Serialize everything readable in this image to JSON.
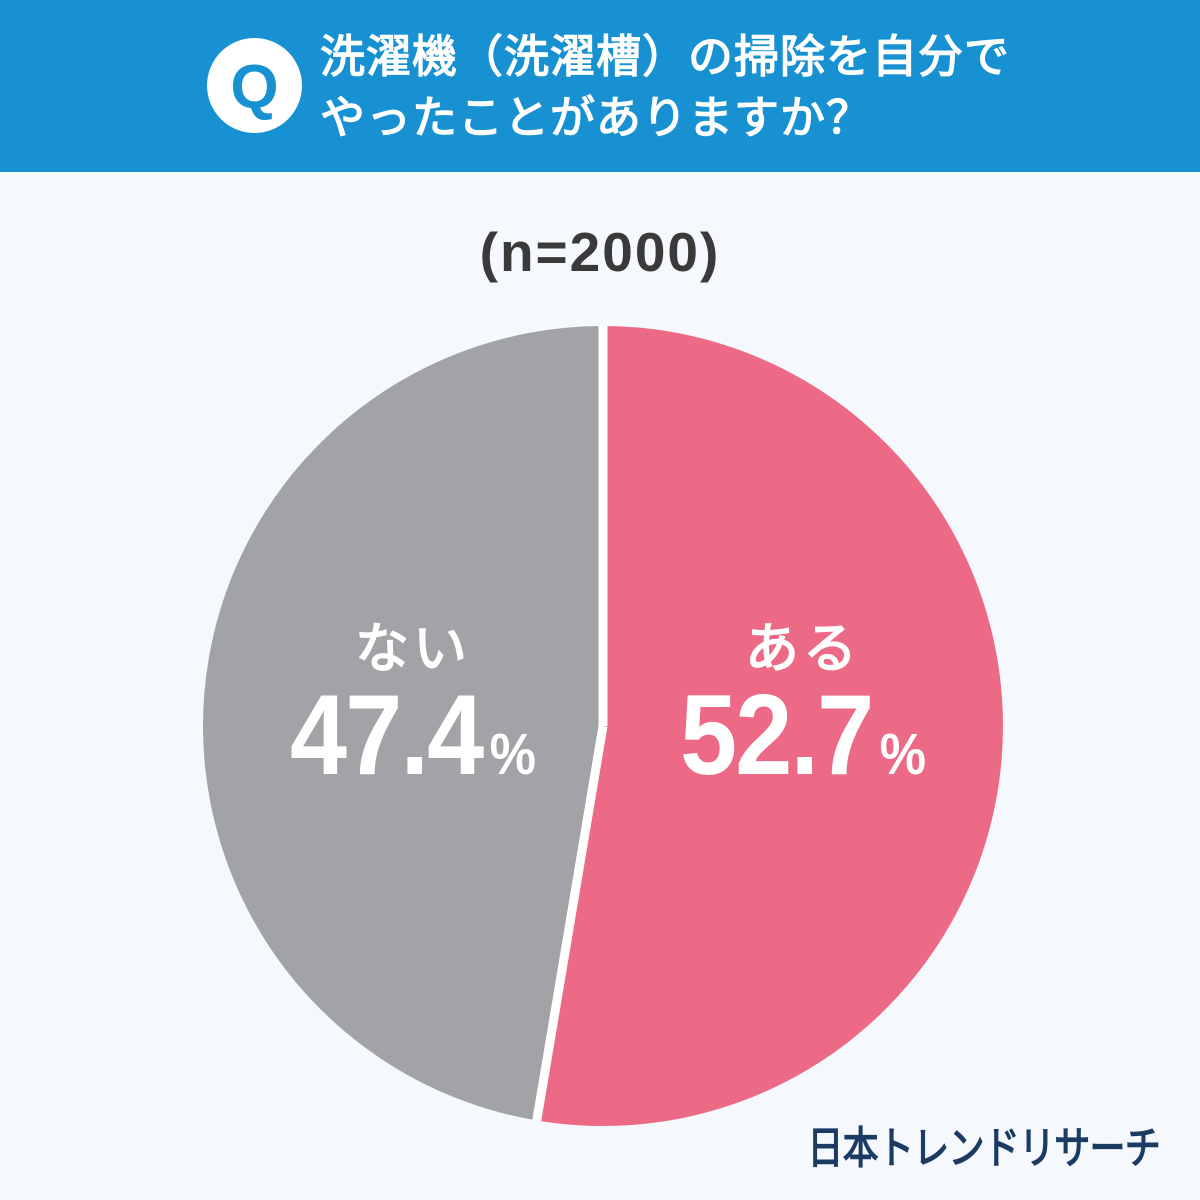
{
  "header": {
    "badge_letter": "Q",
    "question_line1": "洗濯機（洗濯槽）の掃除を自分で",
    "question_line2": "やったことがありますか？"
  },
  "sample_size_label": "(n=2000)",
  "chart_data": {
    "type": "pie",
    "title": "洗濯機（洗濯槽）の掃除を自分でやったことがありますか？",
    "sample_label": "(n=2000)",
    "sample_n": 2000,
    "start_angle_deg": 0,
    "direction": "clockwise",
    "legend_position": "inside-slices",
    "slices": [
      {
        "label": "ある",
        "value": 52.7,
        "unit": "%",
        "color": "#ec6a85"
      },
      {
        "label": "ない",
        "value": 47.4,
        "unit": "%",
        "color": "#a1a3a7"
      }
    ],
    "divider_color": "#ffffff"
  },
  "footer": {
    "brand": "日本トレンドリサーチ"
  },
  "colors": {
    "header_blue": "#1791d2",
    "background": "#f5f8fc",
    "pink": "#ec6a85",
    "gray": "#a1a3a7",
    "navy": "#1c3b63",
    "text_dark": "#3a3a3a"
  }
}
